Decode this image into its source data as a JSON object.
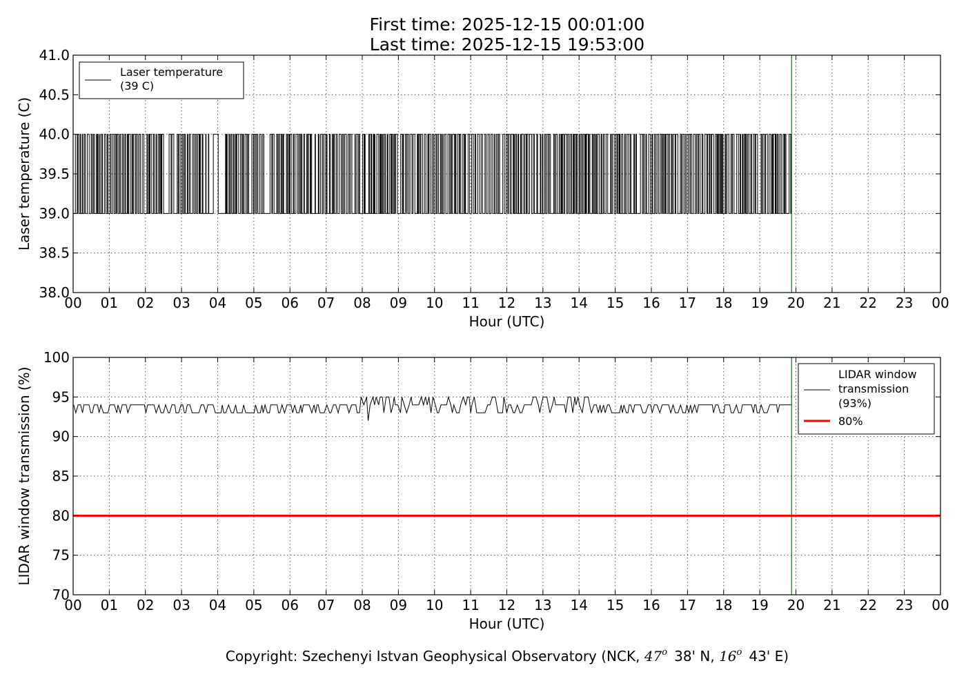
{
  "title": {
    "line1": "First time: 2025-12-15 00:01:00",
    "line2": "Last time: 2025-12-15 19:53:00"
  },
  "copyright": {
    "prefix": "Copyright: Szechenyi Istvan Geophysical Observatory (NCK, ",
    "lat_deg": "47",
    "lat_min": "38' N, ",
    "lon_deg": "16",
    "lon_min": "43' E)",
    "degree_symbol": "o"
  },
  "colors": {
    "data_line": "#000000",
    "current_time_line": "#008000",
    "threshold_line": "#ff0000"
  },
  "chart_data": [
    {
      "type": "line",
      "ylabel": "Laser temperature (C)",
      "xlabel": "Hour (UTC)",
      "xlim": [
        0,
        24
      ],
      "ylim": [
        38.0,
        41.0
      ],
      "x_tick_labels": [
        "00",
        "01",
        "02",
        "03",
        "04",
        "05",
        "06",
        "07",
        "08",
        "09",
        "10",
        "11",
        "12",
        "13",
        "14",
        "15",
        "16",
        "17",
        "18",
        "19",
        "20",
        "21",
        "22",
        "23",
        "00"
      ],
      "y_tick_labels": [
        "38.0",
        "38.5",
        "39.0",
        "39.5",
        "40.0",
        "40.5",
        "41.0"
      ],
      "grid": true,
      "legend_position": "upper-left",
      "legend": [
        "Laser temperature",
        "(39 C)"
      ],
      "current_time_marker_hour": 19.88,
      "series": [
        {
          "name": "Laser temperature (39 C)",
          "description_values": "temperature oscillates between 39.0 and 40.0 C",
          "low": 39.0,
          "high": 40.0,
          "start_hour": 0.0167,
          "end_hour": 19.88
        }
      ]
    },
    {
      "type": "line",
      "ylabel": "LIDAR window transmission (%)",
      "xlabel": "Hour (UTC)",
      "xlim": [
        0,
        24
      ],
      "ylim": [
        70,
        100
      ],
      "x_tick_labels": [
        "00",
        "01",
        "02",
        "03",
        "04",
        "05",
        "06",
        "07",
        "08",
        "09",
        "10",
        "11",
        "12",
        "13",
        "14",
        "15",
        "16",
        "17",
        "18",
        "19",
        "20",
        "21",
        "22",
        "23",
        "00"
      ],
      "y_tick_labels": [
        "70",
        "75",
        "80",
        "85",
        "90",
        "95",
        "100"
      ],
      "grid": true,
      "legend_position": "upper-right",
      "legend": [
        "LIDAR window",
        "transmission",
        "(93%)",
        "80%"
      ],
      "current_time_marker_hour": 19.88,
      "threshold": 80,
      "series": [
        {
          "name": "LIDAR window transmission (93%)",
          "base": 94,
          "low": 93,
          "high": 95,
          "min_spike": 92,
          "min_spike_hour": 8.17,
          "high_band_hours": [
            7.9,
            14.3
          ],
          "start_hour": 0.0167,
          "end_hour": 19.88
        },
        {
          "name": "80%",
          "constant": 80
        }
      ]
    }
  ]
}
